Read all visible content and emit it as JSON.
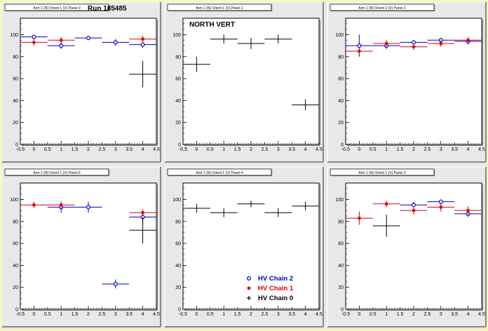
{
  "page": {
    "run_label": "Run 185485",
    "north_vert_label": "NORTH VERT"
  },
  "legend": {
    "entries": [
      {
        "label": "HV Chain 2",
        "color": "#0000cc",
        "marker": "circle"
      },
      {
        "label": "HV Chain 1",
        "color": "#dd0000",
        "marker": "star"
      },
      {
        "label": "HV Chain 0",
        "color": "#000000",
        "marker": "cross"
      }
    ]
  },
  "colors": {
    "frame_background": "#ffff99",
    "pad_background": "#e8e8e8",
    "plot_background": "#ffffff",
    "chain2": "#0000cc",
    "chain1": "#dd0000",
    "chain0": "#000000"
  },
  "chart_data": [
    {
      "type": "scatter",
      "panel": "top-left",
      "title": "Arm 1 (N) Orient 1 (V) Panel 0",
      "xlim": [
        -0.5,
        4.5
      ],
      "ylim": [
        0,
        115
      ],
      "xticks": [
        -0.5,
        0,
        0.5,
        1,
        1.5,
        2,
        2.5,
        3,
        3.5,
        4,
        4.5
      ],
      "yticks": [
        0,
        20,
        40,
        60,
        80,
        100
      ],
      "series": [
        {
          "name": "HV Chain 2",
          "x": [
            0,
            1,
            2,
            3,
            4
          ],
          "y": [
            98,
            90,
            97,
            93,
            91
          ],
          "yerr": [
            2,
            3,
            2,
            3,
            3
          ]
        },
        {
          "name": "HV Chain 1",
          "x": [
            0,
            1,
            4
          ],
          "y": [
            93,
            95,
            96
          ],
          "yerr": [
            3,
            3,
            3
          ]
        },
        {
          "name": "HV Chain 0",
          "x": [
            4
          ],
          "y": [
            64
          ],
          "yerr": [
            12
          ]
        }
      ]
    },
    {
      "type": "scatter",
      "panel": "top-center",
      "title": "Arm 1 (N) Orient 1 (V) Panel 1",
      "xlim": [
        -0.5,
        4.5
      ],
      "ylim": [
        0,
        115
      ],
      "xticks": [
        -0.5,
        0,
        0.5,
        1,
        1.5,
        2,
        2.5,
        3,
        3.5,
        4,
        4.5
      ],
      "yticks": [
        0,
        20,
        40,
        60,
        80,
        100
      ],
      "series": [
        {
          "name": "HV Chain 0",
          "x": [
            0,
            1,
            2,
            3,
            4
          ],
          "y": [
            73,
            96,
            92,
            96,
            36
          ],
          "yerr": [
            7,
            4,
            5,
            4,
            5
          ]
        }
      ]
    },
    {
      "type": "scatter",
      "panel": "top-right",
      "title": "Arm 1 (N) Orient 1 (V) Panel 2",
      "xlim": [
        -0.5,
        4.5
      ],
      "ylim": [
        0,
        115
      ],
      "xticks": [
        -0.5,
        0,
        0.5,
        1,
        1.5,
        2,
        2.5,
        3,
        3.5,
        4,
        4.5
      ],
      "yticks": [
        0,
        20,
        40,
        60,
        80,
        100
      ],
      "series": [
        {
          "name": "HV Chain 2",
          "x": [
            0,
            1,
            2,
            3,
            4
          ],
          "y": [
            90,
            90,
            93,
            95,
            94
          ],
          "yerr": [
            10,
            3,
            2,
            2,
            3
          ]
        },
        {
          "name": "HV Chain 1",
          "x": [
            0,
            1,
            2,
            3,
            4
          ],
          "y": [
            85,
            92,
            89,
            92,
            95
          ],
          "yerr": [
            4,
            3,
            3,
            3,
            3
          ]
        }
      ]
    },
    {
      "type": "scatter",
      "panel": "bottom-left",
      "title": "Arm 1 (N) Orient 1 (V) Panel 5",
      "xlim": [
        -0.5,
        4.5
      ],
      "ylim": [
        0,
        115
      ],
      "xticks": [
        -0.5,
        0,
        0.5,
        1,
        1.5,
        2,
        2.5,
        3,
        3.5,
        4,
        4.5
      ],
      "yticks": [
        0,
        20,
        40,
        60,
        80,
        100
      ],
      "series": [
        {
          "name": "HV Chain 2",
          "x": [
            1,
            2,
            3,
            4
          ],
          "y": [
            93,
            93,
            23,
            84
          ],
          "yerr": [
            5,
            5,
            4,
            6
          ]
        },
        {
          "name": "HV Chain 1",
          "x": [
            0,
            1,
            4
          ],
          "y": [
            95,
            95,
            88
          ],
          "yerr": [
            3,
            3,
            3
          ]
        },
        {
          "name": "HV Chain 0",
          "x": [
            4
          ],
          "y": [
            72
          ],
          "yerr": [
            12
          ]
        }
      ]
    },
    {
      "type": "scatter",
      "panel": "bottom-center",
      "title": "Arm 1 (N) Orient 1 (V) Panel 4",
      "xlim": [
        -0.5,
        4.5
      ],
      "ylim": [
        0,
        115
      ],
      "xticks": [
        -0.5,
        0,
        0.5,
        1,
        1.5,
        2,
        2.5,
        3,
        3.5,
        4,
        4.5
      ],
      "yticks": [
        0,
        20,
        40,
        60,
        80,
        100
      ],
      "series": [
        {
          "name": "HV Chain 0",
          "x": [
            0,
            1,
            2,
            3,
            4
          ],
          "y": [
            92,
            88,
            96,
            88,
            94
          ],
          "yerr": [
            4,
            4,
            3,
            4,
            4
          ]
        }
      ]
    },
    {
      "type": "scatter",
      "panel": "bottom-right",
      "title": "Arm 1 (N) Orient 1 (V) Panel 3",
      "xlim": [
        -0.5,
        4.5
      ],
      "ylim": [
        0,
        115
      ],
      "xticks": [
        -0.5,
        0,
        0.5,
        1,
        1.5,
        2,
        2.5,
        3,
        3.5,
        4,
        4.5
      ],
      "yticks": [
        0,
        20,
        40,
        60,
        80,
        100
      ],
      "series": [
        {
          "name": "HV Chain 2",
          "x": [
            2,
            3,
            4
          ],
          "y": [
            95,
            98,
            87
          ],
          "yerr": [
            3,
            2,
            3
          ]
        },
        {
          "name": "HV Chain 1",
          "x": [
            0,
            1,
            2,
            3,
            4
          ],
          "y": [
            83,
            96,
            90,
            93,
            90
          ],
          "yerr": [
            6,
            3,
            4,
            4,
            4
          ]
        },
        {
          "name": "HV Chain 0",
          "x": [
            1
          ],
          "y": [
            76
          ],
          "yerr": [
            10
          ]
        }
      ]
    }
  ]
}
